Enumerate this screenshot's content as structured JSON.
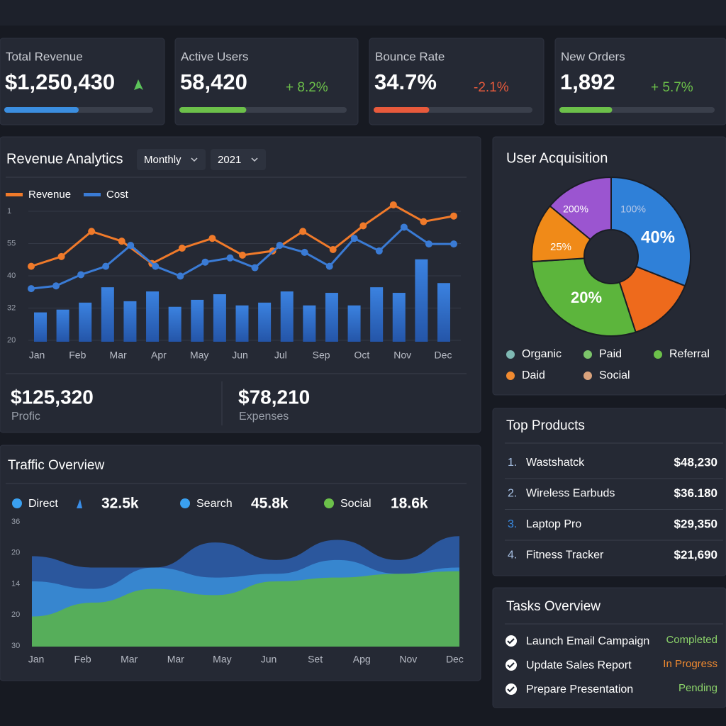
{
  "kpis": [
    {
      "label": "Total Revenue",
      "value": "$1,250,430",
      "trend": "up",
      "color": "#3b8ee0",
      "change_color": "#5cc45a",
      "progress": 50
    },
    {
      "label": "Active Users",
      "value": "58,420",
      "change": "+ 8.2%",
      "color": "#6cc04a",
      "change_color": "#6cc04a",
      "progress": 40
    },
    {
      "label": "Bounce Rate",
      "value": "34.7%",
      "change": "-2.1%",
      "trend": "down",
      "color": "#e85a3c",
      "change_color": "#e85a3c",
      "progress": 35
    },
    {
      "label": "New Orders",
      "value": "1,892",
      "change": "+ 5.7%",
      "color": "#6cc04a",
      "change_color": "#6cc04a",
      "progress": 34
    }
  ],
  "revenue_analytics": {
    "title": "Revenue Analytics",
    "dropdowns": [
      "Monthly",
      "2021"
    ],
    "chart_data": {
      "type": "line-bar",
      "y_labels": [
        "1",
        "55",
        "40",
        "32",
        "20"
      ],
      "x_labels": [
        "Jan",
        "Feb",
        "Mar",
        "Apr",
        "May",
        "Jun",
        "Jul",
        "Sep",
        "Oct",
        "Nov",
        "Dec"
      ],
      "ylim": [
        0,
        100
      ],
      "bars": {
        "color": "#2f6fd0",
        "values": [
          21,
          23,
          28,
          39,
          29,
          36,
          25,
          30,
          34,
          26,
          28,
          36,
          26,
          35,
          26,
          39,
          35,
          59,
          42
        ]
      },
      "series": [
        {
          "name": "Revenue",
          "color": "#f07a2a",
          "values": [
            54,
            61,
            79,
            72,
            56,
            67,
            74,
            62,
            65,
            79,
            66,
            83,
            98,
            86,
            90
          ]
        },
        {
          "name": "Cost",
          "color": "#3a7bd5",
          "values": [
            38,
            40,
            48,
            54,
            69,
            54,
            47,
            57,
            60,
            53,
            69,
            64,
            54,
            74,
            65,
            82,
            70,
            70
          ]
        }
      ],
      "grid": true
    },
    "summary": [
      {
        "value": "$125,320",
        "label": "Profic"
      },
      {
        "value": "$78,210",
        "label": "Expenses"
      }
    ]
  },
  "user_acquisition": {
    "title": "User Acquisition",
    "chart_data": {
      "type": "donut",
      "values": [
        31,
        14,
        29,
        12,
        14
      ],
      "colors": [
        "#2f80d8",
        "#ee6a1c",
        "#5cb53c",
        "#f08a18",
        "#9b55d0"
      ],
      "annotations": [
        "200%",
        "100%",
        "40%",
        "25%",
        "20%"
      ]
    },
    "legend": [
      {
        "name": "Organic",
        "color": "#7fb9b3"
      },
      {
        "name": "Paid",
        "color": "#7cc46a"
      },
      {
        "name": "Referral",
        "color": "#6cc04a"
      },
      {
        "name": "Daid",
        "color": "#f08a30"
      },
      {
        "name": "Social",
        "color": "#d9a27c"
      }
    ]
  },
  "top_products": {
    "title": "Top Products",
    "rows": [
      {
        "rank": "1.",
        "name": "Wastshatck",
        "price": "$48,230"
      },
      {
        "rank": "2.",
        "name": "Wireless Earbuds",
        "price": "$36.180"
      },
      {
        "rank": "3.",
        "name": "Laptop Pro",
        "price": "$29,350"
      },
      {
        "rank": "4.",
        "name": "Fitness Tracker",
        "price": "$21,690"
      }
    ]
  },
  "tasks": {
    "title": "Tasks Overview",
    "rows": [
      {
        "name": "Launch Email Campaign",
        "status": "Completed",
        "color": "#8cd46a"
      },
      {
        "name": "Update Sales Report",
        "status": "In Progress",
        "color": "#f08a30"
      },
      {
        "name": "Prepare Presentation",
        "status": "Pending",
        "color": "#8cd46a"
      }
    ]
  },
  "traffic": {
    "title": "Traffic Overview",
    "chart_data": {
      "type": "area",
      "y_labels": [
        "36",
        "20",
        "14",
        "20",
        "30"
      ],
      "x_labels": [
        "Jan",
        "Feb",
        "Mar",
        "Mar",
        "May",
        "Jun",
        "Set",
        "Apg",
        "Nov",
        "Dec"
      ],
      "ylim": [
        0,
        100
      ],
      "series": [
        {
          "name": "Search",
          "value": "45.8k",
          "color": "#2d5fb0",
          "dot": "#3aa0f0",
          "values": [
            72,
            63,
            63,
            83,
            69,
            85,
            69,
            88
          ]
        },
        {
          "name": "Direct",
          "value": "32.5k",
          "color": "#3a8ed8",
          "dot": "#3aa0f0",
          "values": [
            52,
            46,
            63,
            55,
            58,
            69,
            58,
            63
          ]
        },
        {
          "name": "Social",
          "value": "18.6k",
          "color": "#5cb545",
          "dot": "#6cc04a",
          "values": [
            24,
            35,
            46,
            41,
            52,
            55,
            58,
            60
          ]
        }
      ]
    }
  }
}
